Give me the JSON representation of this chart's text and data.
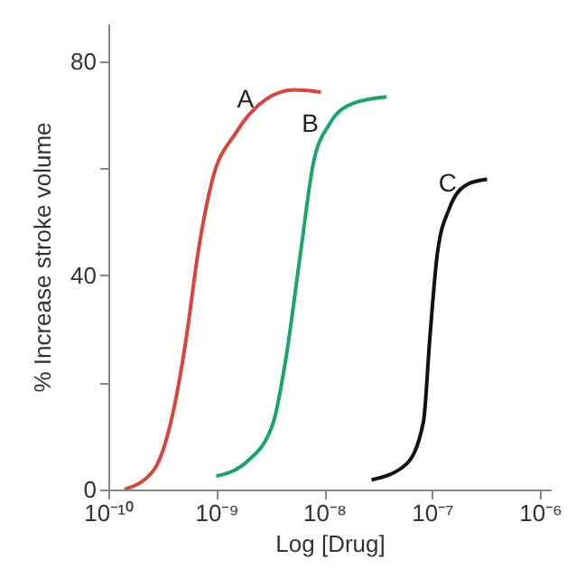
{
  "chart_data": {
    "type": "line",
    "xlabel": "Log [Drug]",
    "ylabel": "% Increase stroke volume",
    "log": "x",
    "grid": false,
    "xlim": [
      1e-10,
      1.26e-06
    ],
    "xticks": [
      {
        "value": 1e-10,
        "label": "10⁻¹⁰"
      },
      {
        "value": 1e-09,
        "label": "10⁻⁹"
      },
      {
        "value": 1e-08,
        "label": "10⁻⁸"
      },
      {
        "value": 1e-07,
        "label": "10⁻⁷"
      },
      {
        "value": 1e-06,
        "label": "10⁻⁶"
      }
    ],
    "ylim": [
      0,
      87
    ],
    "yticks": [
      0,
      {
        "value": 20,
        "label": null
      },
      40,
      {
        "value": 60,
        "label": null
      },
      80
    ],
    "series": [
      {
        "name": "A",
        "color": "#d9453b",
        "x": [
          1.41e-10,
          2.63e-10,
          3.8e-10,
          5.25e-10,
          6.76e-10,
          9.12e-10,
          1.51e-09,
          2.82e-09,
          5.25e-09,
          9.33e-09
        ],
        "values": [
          0,
          3.6,
          12.6,
          28,
          44,
          57.5,
          66.5,
          72.7,
          74.6,
          74.2
        ]
      },
      {
        "name": "B",
        "color": "#1aa66b",
        "x": [
          1e-09,
          1.95e-09,
          3.39e-09,
          4.37e-09,
          6.03e-09,
          7.94e-09,
          1.12e-08,
          1.86e-08,
          3.8e-08
        ],
        "values": [
          2.5,
          5.3,
          12.6,
          23.8,
          44,
          60.9,
          68.2,
          72.1,
          73.3
        ]
      },
      {
        "name": "C",
        "color": "#111111",
        "x": [
          2.75e-08,
          5.75e-08,
          8.32e-08,
          9.55e-08,
          1.12e-07,
          1.45e-07,
          2.14e-07,
          3.24e-07
        ],
        "values": [
          1.8,
          4.7,
          12.6,
          28.3,
          44,
          52.5,
          57,
          57.9
        ]
      }
    ]
  }
}
